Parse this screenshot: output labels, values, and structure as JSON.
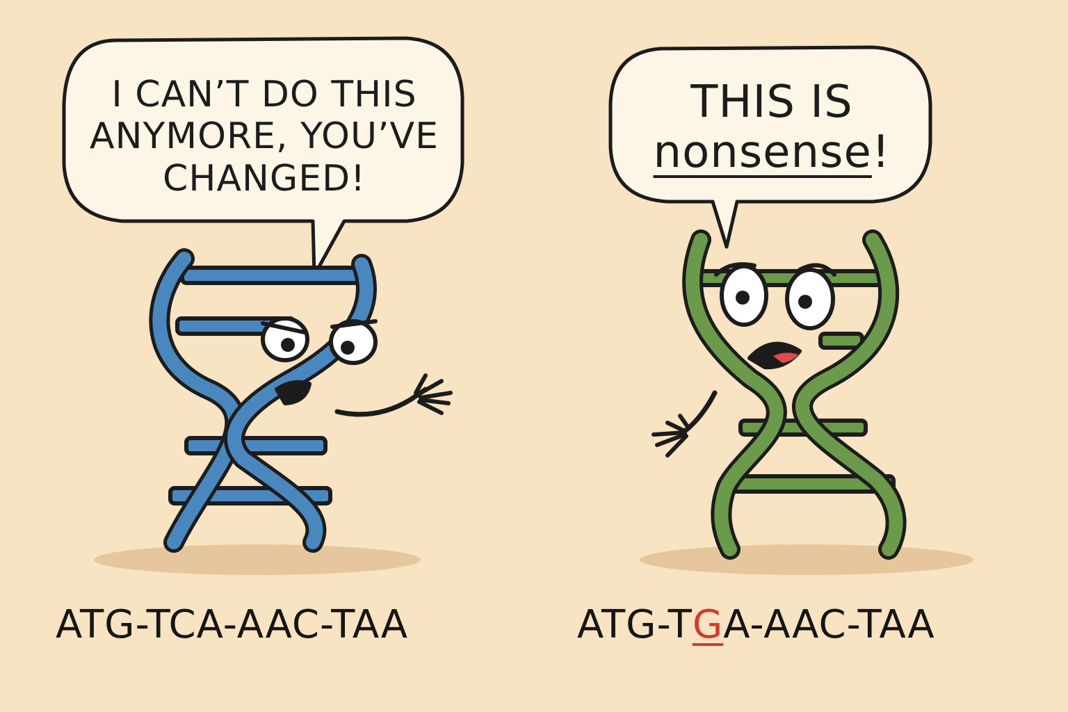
{
  "colors": {
    "background": "#f8e3c2",
    "blue_strand": "#4a87bf",
    "green_strand": "#6a9a4a",
    "mutation": "#d43a2c",
    "ink": "#1c1c1c",
    "bubble_fill": "#fdf5e6"
  },
  "left_character": {
    "speech": {
      "line1": "I CAN’T DO THIS",
      "line2": "ANYMORE, YOU’VE",
      "line3": "CHANGED!"
    },
    "sequence": "ATG-TCA-AAC-TAA"
  },
  "right_character": {
    "speech": {
      "line1": "THIS IS",
      "line2": "nonsense",
      "line2_suffix": "!"
    },
    "sequence": {
      "prefix": "ATG-T",
      "mutated_base": "G",
      "suffix": "A-AAC-TAA"
    }
  }
}
